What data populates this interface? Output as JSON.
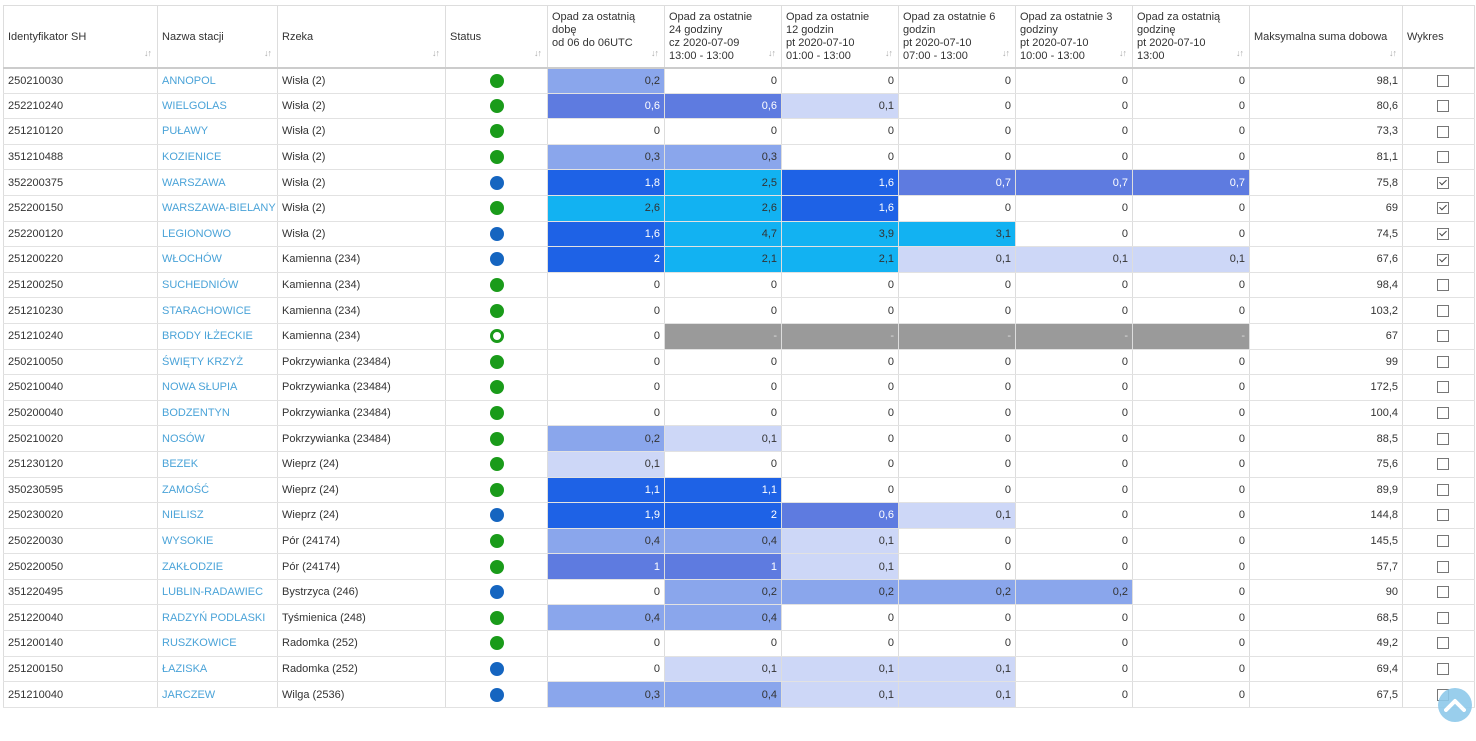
{
  "headers": [
    {
      "label": "Identyfikator SH"
    },
    {
      "label": "Nazwa stacji"
    },
    {
      "label": "Rzeka"
    },
    {
      "label": "Status"
    },
    {
      "label": "Opad za ostatnią dobę\nod 06 do 06UTC"
    },
    {
      "label": "Opad za ostatnie\n24 godziny\ncz 2020-07-09\n13:00 - 13:00"
    },
    {
      "label": "Opad za ostatnie\n12 godzin\npt 2020-07-10\n01:00 - 13:00"
    },
    {
      "label": "Opad za ostatnie 6\ngodzin\npt 2020-07-10\n07:00 - 13:00"
    },
    {
      "label": "Opad za ostatnie 3\ngodziny\npt 2020-07-10\n10:00 - 13:00"
    },
    {
      "label": "Opad za ostatnią\ngodzinę\npt 2020-07-10\n13:00"
    },
    {
      "label": "Maksymalna suma dobowa"
    },
    {
      "label": "Wykres"
    }
  ],
  "sort_icon": "sort-arrows-icon",
  "level_colors": {
    "1": "#cdd7f7",
    "2": "#8aa6ec",
    "3": "#5e7be0",
    "4": "#1e62e6",
    "5": "#12b2f2",
    "na": "#9a9a9a"
  },
  "status_colors": {
    "green": "#1a9b1a",
    "blue": "#1565c0"
  },
  "rows": [
    {
      "id": "250210030",
      "name": "ANNOPOL",
      "river": "Wisła (2)",
      "status": "green",
      "p": [
        "0,2",
        "0",
        "0",
        "0",
        "0",
        "0"
      ],
      "lv": [
        2,
        0,
        0,
        0,
        0,
        0
      ],
      "max": "98,1",
      "chart": false
    },
    {
      "id": "252210240",
      "name": "WIELGOLAS",
      "river": "Wisła (2)",
      "status": "green",
      "p": [
        "0,6",
        "0,6",
        "0,1",
        "0",
        "0",
        "0"
      ],
      "lv": [
        3,
        3,
        1,
        0,
        0,
        0
      ],
      "max": "80,6",
      "chart": false
    },
    {
      "id": "251210120",
      "name": "PUŁAWY",
      "river": "Wisła (2)",
      "status": "green",
      "p": [
        "0",
        "0",
        "0",
        "0",
        "0",
        "0"
      ],
      "lv": [
        0,
        0,
        0,
        0,
        0,
        0
      ],
      "max": "73,3",
      "chart": false
    },
    {
      "id": "351210488",
      "name": "KOZIENICE",
      "river": "Wisła (2)",
      "status": "green",
      "p": [
        "0,3",
        "0,3",
        "0",
        "0",
        "0",
        "0"
      ],
      "lv": [
        2,
        2,
        0,
        0,
        0,
        0
      ],
      "max": "81,1",
      "chart": false
    },
    {
      "id": "352200375",
      "name": "WARSZAWA",
      "river": "Wisła (2)",
      "status": "blue",
      "p": [
        "1,8",
        "2,5",
        "1,6",
        "0,7",
        "0,7",
        "0,7"
      ],
      "lv": [
        4,
        5,
        4,
        3,
        3,
        3
      ],
      "max": "75,8",
      "chart": true
    },
    {
      "id": "252200150",
      "name": "WARSZAWA-BIELANY",
      "river": "Wisła (2)",
      "status": "green",
      "p": [
        "2,6",
        "2,6",
        "1,6",
        "0",
        "0",
        "0"
      ],
      "lv": [
        5,
        5,
        4,
        0,
        0,
        0
      ],
      "max": "69",
      "chart": true
    },
    {
      "id": "252200120",
      "name": "LEGIONOWO",
      "river": "Wisła (2)",
      "status": "blue",
      "p": [
        "1,6",
        "4,7",
        "3,9",
        "3,1",
        "0",
        "0"
      ],
      "lv": [
        4,
        5,
        5,
        5,
        0,
        0
      ],
      "max": "74,5",
      "chart": true
    },
    {
      "id": "251200220",
      "name": "WŁOCHÓW",
      "river": "Kamienna (234)",
      "status": "blue",
      "p": [
        "2",
        "2,1",
        "2,1",
        "0,1",
        "0,1",
        "0,1"
      ],
      "lv": [
        4,
        5,
        5,
        1,
        1,
        1
      ],
      "max": "67,6",
      "chart": true
    },
    {
      "id": "251200250",
      "name": "SUCHEDNIÓW",
      "river": "Kamienna (234)",
      "status": "green",
      "p": [
        "0",
        "0",
        "0",
        "0",
        "0",
        "0"
      ],
      "lv": [
        0,
        0,
        0,
        0,
        0,
        0
      ],
      "max": "98,4",
      "chart": false
    },
    {
      "id": "251210230",
      "name": "STARACHOWICE",
      "river": "Kamienna (234)",
      "status": "green",
      "p": [
        "0",
        "0",
        "0",
        "0",
        "0",
        "0"
      ],
      "lv": [
        0,
        0,
        0,
        0,
        0,
        0
      ],
      "max": "103,2",
      "chart": false
    },
    {
      "id": "251210240",
      "name": "BRODY IŁŻECKIE",
      "river": "Kamienna (234)",
      "status": "ring",
      "p": [
        "0",
        "-",
        "-",
        "-",
        "-",
        "-"
      ],
      "lv": [
        0,
        "na",
        "na",
        "na",
        "na",
        "na"
      ],
      "max": "67",
      "chart": false
    },
    {
      "id": "250210050",
      "name": "ŚWIĘTY KRZYŻ",
      "river": "Pokrzywianka (23484)",
      "status": "green",
      "p": [
        "0",
        "0",
        "0",
        "0",
        "0",
        "0"
      ],
      "lv": [
        0,
        0,
        0,
        0,
        0,
        0
      ],
      "max": "99",
      "chart": false
    },
    {
      "id": "250210040",
      "name": "NOWA SŁUPIA",
      "river": "Pokrzywianka (23484)",
      "status": "green",
      "p": [
        "0",
        "0",
        "0",
        "0",
        "0",
        "0"
      ],
      "lv": [
        0,
        0,
        0,
        0,
        0,
        0
      ],
      "max": "172,5",
      "chart": false
    },
    {
      "id": "250200040",
      "name": "BODZENTYN",
      "river": "Pokrzywianka (23484)",
      "status": "green",
      "p": [
        "0",
        "0",
        "0",
        "0",
        "0",
        "0"
      ],
      "lv": [
        0,
        0,
        0,
        0,
        0,
        0
      ],
      "max": "100,4",
      "chart": false
    },
    {
      "id": "250210020",
      "name": "NOSÓW",
      "river": "Pokrzywianka (23484)",
      "status": "green",
      "p": [
        "0,2",
        "0,1",
        "0",
        "0",
        "0",
        "0"
      ],
      "lv": [
        2,
        1,
        0,
        0,
        0,
        0
      ],
      "max": "88,5",
      "chart": false
    },
    {
      "id": "251230120",
      "name": "BEZEK",
      "river": "Wieprz (24)",
      "status": "green",
      "p": [
        "0,1",
        "0",
        "0",
        "0",
        "0",
        "0"
      ],
      "lv": [
        1,
        0,
        0,
        0,
        0,
        0
      ],
      "max": "75,6",
      "chart": false
    },
    {
      "id": "350230595",
      "name": "ZAMOŚĆ",
      "river": "Wieprz (24)",
      "status": "green",
      "p": [
        "1,1",
        "1,1",
        "0",
        "0",
        "0",
        "0"
      ],
      "lv": [
        4,
        4,
        0,
        0,
        0,
        0
      ],
      "max": "89,9",
      "chart": false
    },
    {
      "id": "250230020",
      "name": "NIELISZ",
      "river": "Wieprz (24)",
      "status": "blue",
      "p": [
        "1,9",
        "2",
        "0,6",
        "0,1",
        "0",
        "0"
      ],
      "lv": [
        4,
        4,
        3,
        1,
        0,
        0
      ],
      "max": "144,8",
      "chart": false
    },
    {
      "id": "250220030",
      "name": "WYSOKIE",
      "river": "Pór (24174)",
      "status": "green",
      "p": [
        "0,4",
        "0,4",
        "0,1",
        "0",
        "0",
        "0"
      ],
      "lv": [
        2,
        2,
        1,
        0,
        0,
        0
      ],
      "max": "145,5",
      "chart": false
    },
    {
      "id": "250220050",
      "name": "ZAKŁODZIE",
      "river": "Pór (24174)",
      "status": "green",
      "p": [
        "1",
        "1",
        "0,1",
        "0",
        "0",
        "0"
      ],
      "lv": [
        3,
        3,
        1,
        0,
        0,
        0
      ],
      "max": "57,7",
      "chart": false
    },
    {
      "id": "351220495",
      "name": "LUBLIN-RADAWIEC",
      "river": "Bystrzyca (246)",
      "status": "blue",
      "p": [
        "0",
        "0,2",
        "0,2",
        "0,2",
        "0,2",
        "0"
      ],
      "lv": [
        0,
        2,
        2,
        2,
        2,
        0
      ],
      "max": "90",
      "chart": false
    },
    {
      "id": "251220040",
      "name": "RADZYŃ PODLASKI",
      "river": "Tyśmienica (248)",
      "status": "green",
      "p": [
        "0,4",
        "0,4",
        "0",
        "0",
        "0",
        "0"
      ],
      "lv": [
        2,
        2,
        0,
        0,
        0,
        0
      ],
      "max": "68,5",
      "chart": false
    },
    {
      "id": "251200140",
      "name": "RUSZKOWICE",
      "river": "Radomka (252)",
      "status": "green",
      "p": [
        "0",
        "0",
        "0",
        "0",
        "0",
        "0"
      ],
      "lv": [
        0,
        0,
        0,
        0,
        0,
        0
      ],
      "max": "49,2",
      "chart": false
    },
    {
      "id": "251200150",
      "name": "ŁAZISKA",
      "river": "Radomka (252)",
      "status": "blue",
      "p": [
        "0",
        "0,1",
        "0,1",
        "0,1",
        "0",
        "0"
      ],
      "lv": [
        0,
        1,
        1,
        1,
        0,
        0
      ],
      "max": "69,4",
      "chart": false
    },
    {
      "id": "251210040",
      "name": "JARCZEW",
      "river": "Wilga (2536)",
      "status": "blue",
      "p": [
        "0,3",
        "0,4",
        "0,1",
        "0,1",
        "0",
        "0"
      ],
      "lv": [
        2,
        2,
        1,
        1,
        0,
        0
      ],
      "max": "67,5",
      "chart": false
    }
  ],
  "scroll_top_icon": "chevron-up-icon"
}
